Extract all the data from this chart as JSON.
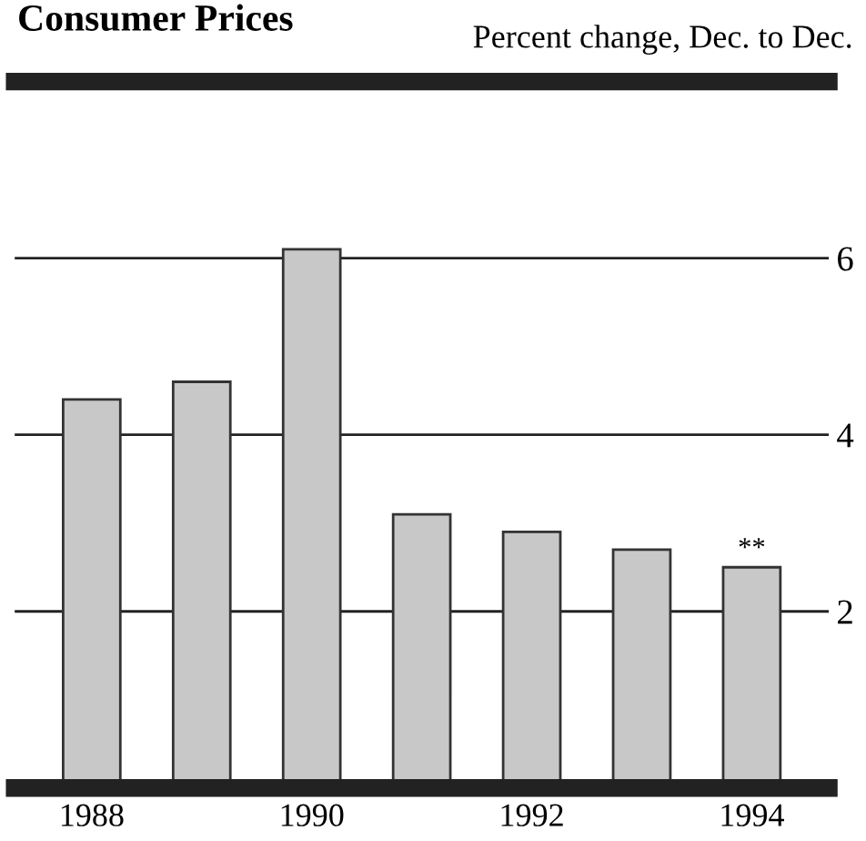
{
  "chart_data": {
    "type": "bar",
    "title": "Consumer Prices",
    "subtitle": "Percent change, Dec. to Dec.",
    "categories": [
      "1988",
      null,
      "1990",
      null,
      "1992",
      null,
      "1994"
    ],
    "values": [
      4.4,
      4.6,
      6.1,
      3.1,
      2.9,
      2.7,
      2.5
    ],
    "color": "#c8c8c8",
    "ylim": [
      0,
      8
    ],
    "yticks": [
      2,
      4,
      6
    ],
    "grid": "y",
    "annotations": [
      {
        "text": "**",
        "x": "1994",
        "y": 2.5
      }
    ]
  }
}
